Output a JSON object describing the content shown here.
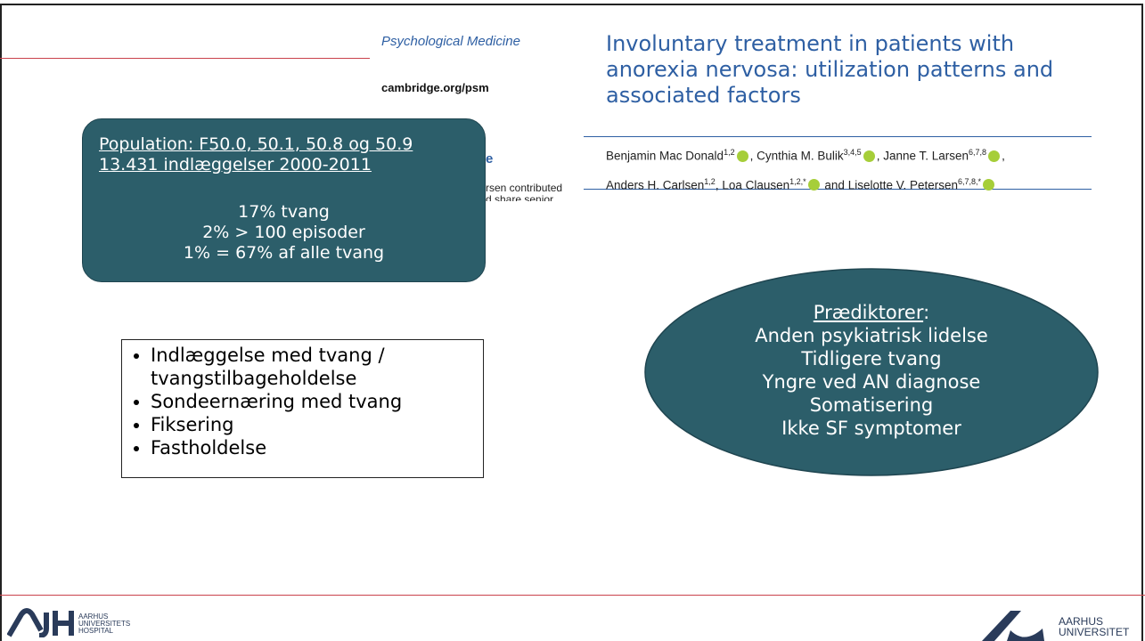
{
  "paper": {
    "journal": "Psychological Medicine",
    "url": "cambridge.org/psm",
    "fragments": [
      "e",
      "rsen contributed",
      "d share senior"
    ],
    "title": "Involuntary treatment in patients with anorexia nervosa: utilization patterns and associated factors",
    "author_lines": [
      [
        {
          "name": "Benjamin Mac Donald",
          "sup": "1,2",
          "sep": ", "
        },
        {
          "name": "Cynthia M. Bulik",
          "sup": "3,4,5",
          "sep": ", "
        },
        {
          "name": "Janne T. Larsen",
          "sup": "6,7,8",
          "sep": ","
        }
      ],
      [
        {
          "name": "Anders H. Carlsen",
          "sup": "1,2",
          "sep": ", "
        },
        {
          "name": "Loa Clausen",
          "sup": "1,2,*",
          "sep": " and "
        },
        {
          "name": "Liselotte V. Petersen",
          "sup": "6,7,8,*",
          "sep": ""
        }
      ]
    ]
  },
  "population": {
    "lines": [
      "Population: F50.0, 50.1, 50.8 og 50.9",
      "13.431 indlæggelser 2000-2011"
    ],
    "stats": [
      "17% tvang",
      "2% > 100 episoder",
      "1% = 67% af alle tvang"
    ]
  },
  "bullets": [
    "Indlæggelse med tvang / tvangstilbageholdelse",
    "Sondeernæring med tvang",
    "Fiksering",
    "Fastholdelse"
  ],
  "predictors": {
    "heading": "Prædiktorer",
    "colon": ":",
    "items": [
      "Anden psykiatrisk lidelse",
      "Tidligere tvang",
      "Yngre ved AN diagnose",
      "Somatisering",
      "Ikke SF symptomer"
    ]
  },
  "logos": {
    "left": [
      "AARHUS",
      "UNIVERSITETS",
      "HOSPITAL"
    ],
    "right": [
      "AARHUS",
      "UNIVERSITET"
    ]
  }
}
